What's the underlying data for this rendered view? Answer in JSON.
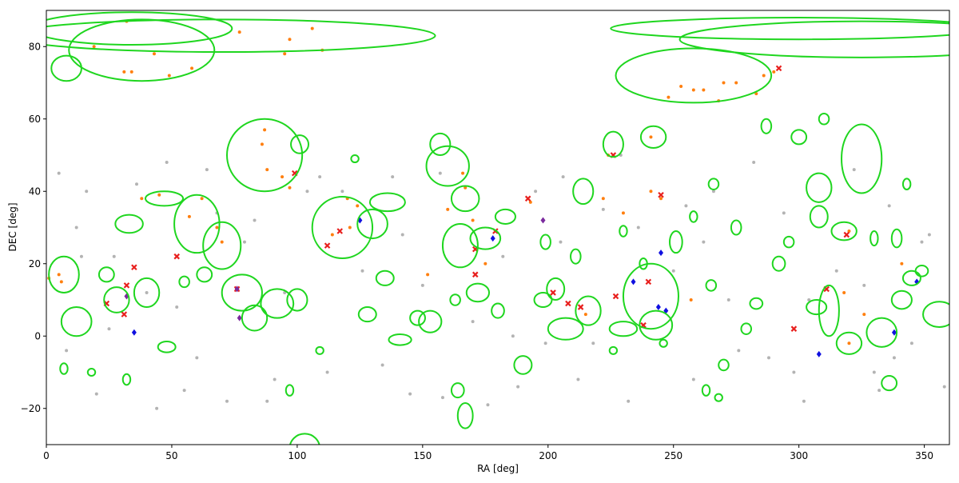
{
  "chart_data": {
    "type": "scatter",
    "xlabel": "RA [deg]",
    "ylabel": "DEC [deg]",
    "xlim": [
      0,
      360
    ],
    "ylim": [
      -30,
      90
    ],
    "xticks": [
      0,
      50,
      100,
      150,
      200,
      250,
      300,
      350
    ],
    "yticks": [
      {
        "value": -20,
        "label": "−20"
      },
      0,
      20,
      40,
      60,
      80
    ],
    "series": [
      {
        "color": "#b3b3b3",
        "marker": "o",
        "x": [
          5,
          12,
          20,
          27,
          36,
          44,
          52,
          60,
          68,
          79,
          88,
          95,
          104,
          112,
          126,
          134,
          142,
          150,
          158,
          170,
          182,
          188,
          195,
          205,
          212,
          222,
          232,
          250,
          258,
          266,
          272,
          282,
          288,
          294,
          302,
          315,
          322,
          330,
          336,
          345,
          352,
          358,
          8,
          16,
          25,
          40,
          55,
          64,
          83,
          91,
          118,
          138,
          145,
          176,
          186,
          206,
          218,
          236,
          255,
          276,
          298,
          326,
          338,
          349,
          14,
          48,
          72,
          109,
          157,
          199,
          229,
          262,
          304,
          332
        ],
        "y": [
          45,
          30,
          -16,
          22,
          42,
          -20,
          8,
          -6,
          34,
          26,
          -18,
          12,
          40,
          -10,
          18,
          -8,
          28,
          14,
          -17,
          4,
          22,
          -14,
          40,
          26,
          -12,
          35,
          -18,
          18,
          -12,
          40,
          10,
          48,
          -6,
          34,
          -18,
          18,
          46,
          -10,
          36,
          -2,
          28,
          -14,
          -4,
          40,
          2,
          12,
          -15,
          46,
          32,
          -12,
          40,
          44,
          -16,
          -19,
          0,
          44,
          -2,
          30,
          36,
          -4,
          -10,
          14,
          -6,
          26,
          22,
          48,
          -18,
          44,
          45,
          -2,
          50,
          26,
          10,
          -15
        ]
      },
      {
        "color": "#ff7f0e",
        "marker": "o",
        "x": [
          87,
          86,
          88,
          94,
          97,
          62,
          57,
          68,
          70,
          45,
          38,
          6,
          5,
          32,
          19,
          58,
          49,
          31,
          34,
          43,
          95,
          110,
          106,
          77,
          97,
          253,
          258,
          262,
          270,
          275,
          286,
          290,
          248,
          268,
          283,
          120,
          124,
          114,
          121,
          166,
          170,
          160,
          152,
          175,
          167,
          241,
          245,
          241,
          257,
          320,
          326,
          341,
          320,
          318,
          215,
          193,
          230,
          224,
          222,
          1
        ],
        "y": [
          57,
          53,
          46,
          44,
          41,
          38,
          33,
          30,
          26,
          39,
          38,
          15,
          17,
          87,
          80,
          74,
          72,
          73,
          73,
          78,
          78,
          79,
          85,
          84,
          82,
          69,
          68,
          68,
          70,
          70,
          72,
          73,
          66,
          65,
          67,
          38,
          36,
          28,
          30,
          45,
          32,
          35,
          17,
          20,
          41,
          40,
          38,
          55,
          10,
          29,
          6,
          20,
          -2,
          12,
          6,
          37,
          34,
          50,
          38,
          16
        ]
      },
      {
        "color": "#e8201e",
        "marker": "x",
        "x": [
          35,
          32,
          24,
          52,
          76,
          99,
          117,
          112,
          171,
          179,
          171,
          192,
          202,
          208,
          213,
          227,
          226,
          245,
          240,
          238,
          292,
          298,
          311,
          319,
          31
        ],
        "y": [
          19,
          14,
          9,
          22,
          13,
          45,
          29,
          25,
          24,
          29,
          17,
          38,
          12,
          9,
          8,
          11,
          50,
          39,
          15,
          3,
          74,
          2,
          13,
          28,
          6
        ]
      },
      {
        "color": "#1010e0",
        "marker": "D",
        "x": [
          35,
          125,
          178,
          234,
          244,
          247,
          245,
          308,
          338,
          347
        ],
        "y": [
          1,
          32,
          27,
          15,
          8,
          7,
          23,
          -5,
          1,
          15
        ]
      },
      {
        "color": "#7b2a9e",
        "marker": "D",
        "x": [
          32,
          76,
          77,
          198
        ],
        "y": [
          11,
          13,
          5,
          32
        ]
      }
    ],
    "ellipses": {
      "color": "#1fd61f",
      "x": [
        70,
        34,
        38,
        8,
        325,
        300,
        258,
        87,
        101,
        118,
        130,
        136,
        70,
        60,
        47,
        33,
        7,
        12,
        28,
        40,
        24,
        78,
        83,
        92,
        100,
        165,
        160,
        157,
        167,
        175,
        172,
        183,
        226,
        214,
        242,
        241,
        243,
        230,
        207,
        216,
        203,
        199,
        251,
        258,
        266,
        275,
        287,
        300,
        310,
        325,
        308,
        308,
        318,
        330,
        343,
        339,
        349,
        345,
        341,
        356,
        333,
        312,
        307,
        320,
        336,
        283,
        292,
        296,
        270,
        268,
        263,
        279,
        246,
        226,
        190,
        164,
        167,
        103,
        97,
        32,
        7,
        18,
        48,
        63,
        55,
        123,
        109,
        141,
        153,
        148,
        135,
        128,
        163,
        180,
        198,
        211,
        230,
        238,
        265
      ],
      "y": [
        83,
        85,
        79,
        74,
        82,
        85,
        72,
        50,
        53,
        30,
        31,
        37,
        25,
        31,
        38,
        31,
        17,
        4,
        10,
        12,
        17,
        12,
        5,
        9,
        10,
        25,
        47,
        53,
        38,
        27,
        12,
        33,
        53,
        40,
        55,
        11,
        3,
        2,
        2,
        7,
        13,
        26,
        26,
        33,
        42,
        30,
        58,
        55,
        60,
        49,
        41,
        33,
        29,
        27,
        42,
        27,
        18,
        16,
        10,
        6,
        1,
        7,
        8,
        -2,
        -13,
        9,
        20,
        26,
        -8,
        -17,
        -15,
        2,
        -2,
        -4,
        -8,
        -15,
        -22,
        -31,
        -15,
        -12,
        -9,
        -10,
        -3,
        17,
        15,
        49,
        -4,
        -1,
        4,
        5,
        16,
        6,
        10,
        7,
        10,
        22,
        29,
        20,
        14
      ],
      "width": [
        170,
        80,
        58,
        12,
        145,
        150,
        62,
        30,
        7,
        24,
        12,
        14,
        15,
        18,
        15,
        11,
        12,
        12,
        10,
        10,
        6,
        16,
        10,
        13,
        8,
        14,
        17,
        8,
        11,
        12,
        9,
        8,
        8,
        8,
        10,
        22,
        13,
        11,
        14,
        10,
        7,
        4,
        5,
        3,
        4,
        4,
        4,
        6,
        4,
        16,
        10,
        7,
        10,
        3,
        3,
        4,
        5,
        7,
        8,
        13,
        12,
        8,
        8,
        10,
        6,
        5,
        5,
        4,
        4,
        3,
        3,
        4,
        3,
        3,
        7,
        5,
        6,
        12,
        3,
        3,
        3,
        3,
        7,
        6,
        4,
        3,
        3,
        9,
        9,
        6,
        7,
        7,
        4,
        5,
        7,
        4,
        3,
        3,
        4
      ],
      "height": [
        9,
        9,
        17,
        7,
        10,
        6,
        15,
        20,
        5,
        17,
        8,
        5,
        13,
        16,
        4,
        5,
        10,
        8,
        7,
        8,
        4,
        10,
        7,
        8,
        6,
        12,
        11,
        6,
        7,
        6,
        5,
        4,
        7,
        7,
        6,
        18,
        8,
        4,
        6,
        8,
        6,
        4,
        6,
        3,
        3,
        4,
        4,
        4,
        3,
        19,
        8,
        6,
        5,
        4,
        3,
        5,
        3,
        4,
        5,
        7,
        8,
        14,
        4,
        6,
        4,
        3,
        4,
        3,
        3,
        2,
        3,
        3,
        2,
        2,
        5,
        4,
        7,
        8,
        3,
        3,
        3,
        2,
        3,
        4,
        3,
        2,
        2,
        3,
        6,
        4,
        4,
        4,
        3,
        4,
        4,
        4,
        3,
        3,
        3
      ]
    }
  }
}
